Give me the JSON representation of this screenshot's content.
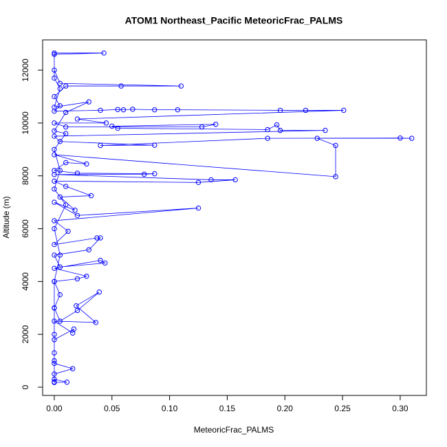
{
  "chart_data": {
    "type": "line",
    "title": "ATOM1 Northeast_Pacific MeteoricFrac_PALMS",
    "x_label": "MeteoricFrac_PALMS",
    "y_label": "Altitude (m)",
    "color": "#0000ff",
    "markers": true,
    "xlim": [
      -0.0101,
      0.3227
    ],
    "ylim": [
      -312,
      13146
    ],
    "xticks": [
      {
        "value": 0,
        "label": "0.00"
      },
      {
        "value": 0.05,
        "label": "0.05"
      },
      {
        "value": 0.1,
        "label": "0.10"
      },
      {
        "value": 0.15,
        "label": "0.15"
      },
      {
        "value": 0.2,
        "label": "0.20"
      },
      {
        "value": 0.25,
        "label": "0.25"
      },
      {
        "value": 0.3,
        "label": "0.30"
      }
    ],
    "yticks": [
      0,
      2000,
      4000,
      6000,
      8000,
      10000,
      12000
    ],
    "x": [
      0,
      0.011,
      0,
      0,
      0.016,
      0,
      0,
      0,
      0.017,
      0.016,
      0,
      0.036,
      0.019,
      0.039,
      0.02,
      0.005,
      0,
      0.005,
      0,
      0.02,
      0.028,
      0,
      0.04,
      0.044,
      0.005,
      0,
      0.03,
      0.04,
      0.037,
      0,
      0.012,
      0,
      0.125,
      0.02,
      0,
      0.018,
      0.005,
      0.032,
      0.01,
      0,
      0.125,
      0.157,
      0.136,
      0,
      0.078,
      0.087,
      0.02,
      0,
      0.01,
      0.028,
      0,
      0.244,
      0.244,
      0.228,
      0.31,
      0.3,
      0.185,
      0.04,
      0.087,
      0.005,
      0,
      0.235,
      0.196,
      0.193,
      0.185,
      0.055,
      0.05,
      0.14,
      0.128,
      0.01,
      0,
      0.045,
      0.02,
      0.251,
      0.218,
      0.196,
      0.107,
      0.087,
      0.068,
      0.06,
      0.055,
      0.04,
      0,
      0.005,
      0,
      0.01,
      0.058,
      0.11,
      0.005,
      0,
      0,
      0.043,
      0,
      0,
      0.005,
      0,
      0.03,
      0.01,
      0,
      0.01,
      0,
      0.005,
      0,
      0.01,
      0,
      0.005,
      0,
      0,
      0,
      0,
      0
    ],
    "values": [
      180,
      190,
      300,
      500,
      700,
      900,
      1300,
      1800,
      2200,
      2050,
      2500,
      2450,
      3080,
      3600,
      2900,
      2500,
      3000,
      3500,
      4000,
      4100,
      4200,
      4500,
      4800,
      4700,
      4550,
      5000,
      5200,
      5650,
      5650,
      5400,
      5900,
      6300,
      6780,
      6500,
      7000,
      6700,
      7200,
      7250,
      7600,
      7800,
      7750,
      7850,
      7850,
      8050,
      8060,
      8080,
      8100,
      8200,
      8500,
      8450,
      8800,
      7970,
      9150,
      9420,
      9420,
      9430,
      9420,
      9150,
      9160,
      9300,
      9500,
      9720,
      9720,
      9930,
      9750,
      9800,
      9880,
      9950,
      9850,
      9850,
      10000,
      10000,
      10150,
      10480,
      10480,
      10480,
      10500,
      10500,
      10520,
      10500,
      10510,
      10480,
      10450,
      10650,
      11000,
      11400,
      11400,
      11400,
      11500,
      12000,
      12650,
      12650,
      12600,
      11700,
      11300,
      10600,
      10800,
      10400,
      9700,
      9600,
      9000,
      8200,
      7500,
      6900,
      6000,
      5000,
      4000,
      3000,
      2000,
      1000,
      200
    ]
  }
}
